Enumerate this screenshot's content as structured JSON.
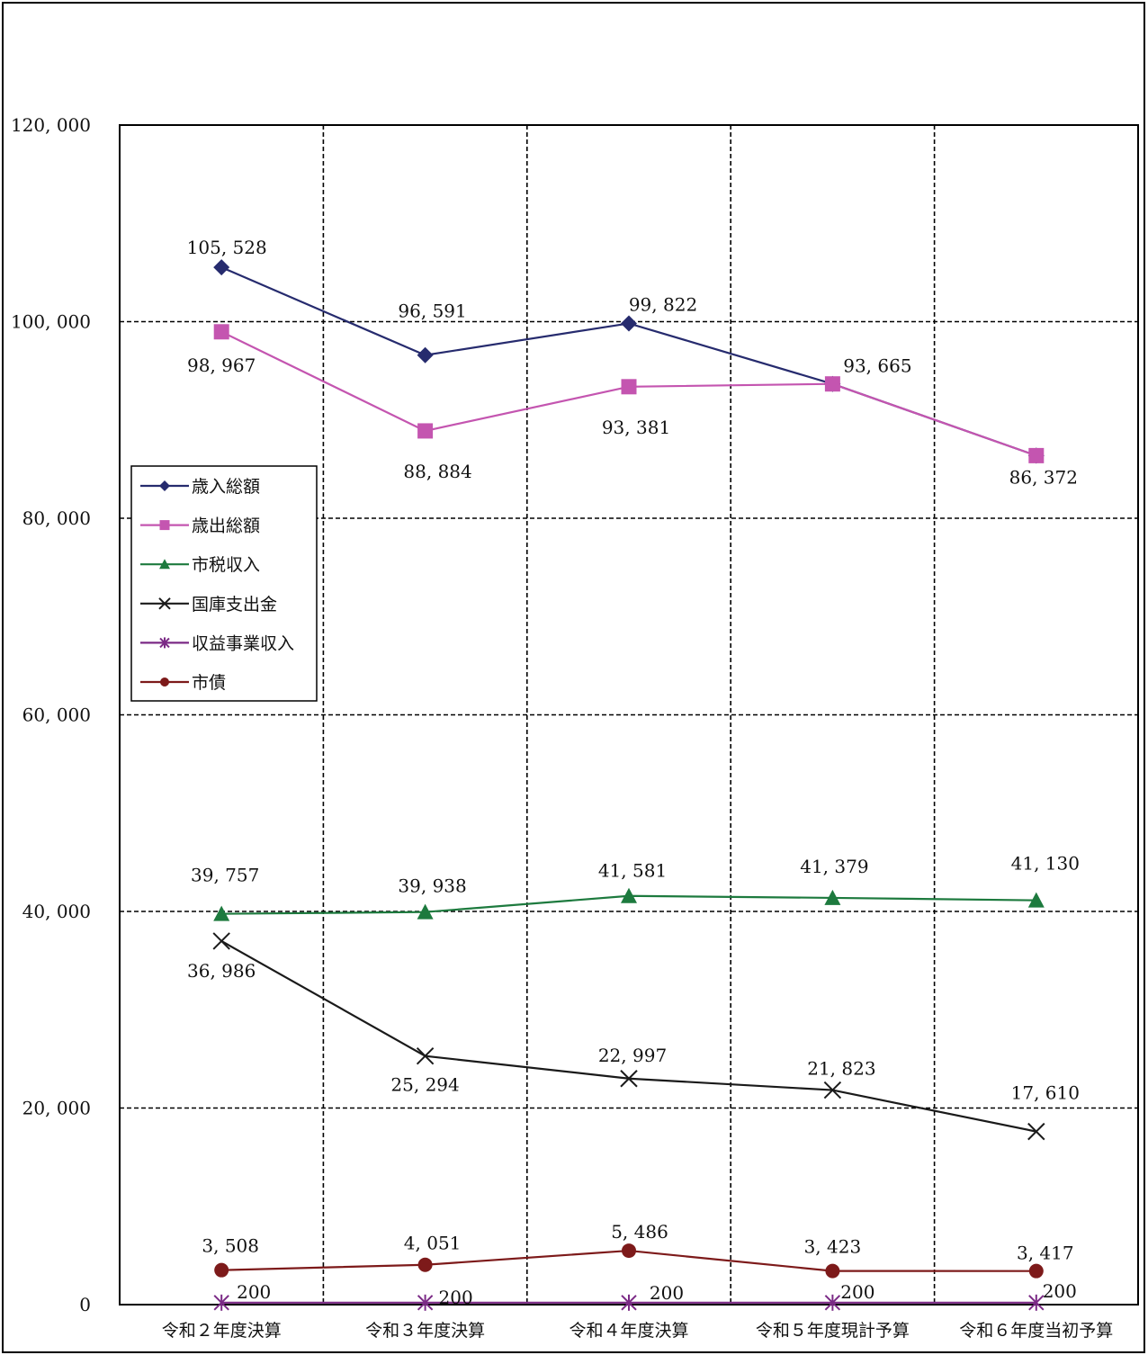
{
  "chart_data": {
    "type": "line",
    "categories": [
      "令和２年度決算",
      "令和３年度決算",
      "令和４年度決算",
      "令和５年度現計予算",
      "令和６年度当初予算"
    ],
    "ylim": [
      0,
      120000
    ],
    "yticks": [
      "0",
      "20, 000",
      "40, 000",
      "60, 000",
      "80, 000",
      "100, 000",
      "120, 000"
    ],
    "grid": true,
    "legend_position": "left-middle",
    "series": [
      {
        "name": "歳入総額",
        "color": "#262b6e",
        "marker": "diamond",
        "values": [
          105528,
          96591,
          99822,
          93665,
          86372
        ],
        "labels": [
          "105, 528",
          "96, 591",
          "99, 822",
          "",
          ""
        ]
      },
      {
        "name": "歳出総額",
        "color": "#c455b0",
        "marker": "square",
        "values": [
          98967,
          88884,
          93381,
          93665,
          86372
        ],
        "labels": [
          "98, 967",
          "88, 884",
          "93, 381",
          "93, 665",
          "86, 372"
        ]
      },
      {
        "name": "市税収入",
        "color": "#1d7a3e",
        "marker": "triangle",
        "values": [
          39757,
          39938,
          41581,
          41379,
          41130
        ],
        "labels": [
          "39, 757",
          "39, 938",
          "41, 581",
          "41, 379",
          "41, 130"
        ]
      },
      {
        "name": "国庫支出金",
        "color": "#1a1a1a",
        "marker": "x",
        "values": [
          36986,
          25294,
          22997,
          21823,
          17610
        ],
        "labels": [
          "36, 986",
          "25, 294",
          "22, 997",
          "21, 823",
          "17, 610"
        ]
      },
      {
        "name": "収益事業収入",
        "color": "#7b2a86",
        "marker": "star",
        "values": [
          200,
          200,
          200,
          200,
          200
        ],
        "labels": [
          "200",
          "200",
          "200",
          "200",
          "200"
        ]
      },
      {
        "name": "市債",
        "color": "#7d1a1a",
        "marker": "circle",
        "values": [
          3508,
          4051,
          5486,
          3423,
          3417
        ],
        "labels": [
          "3, 508",
          "4, 051",
          "5, 486",
          "3, 423",
          "3, 417"
        ]
      }
    ]
  }
}
